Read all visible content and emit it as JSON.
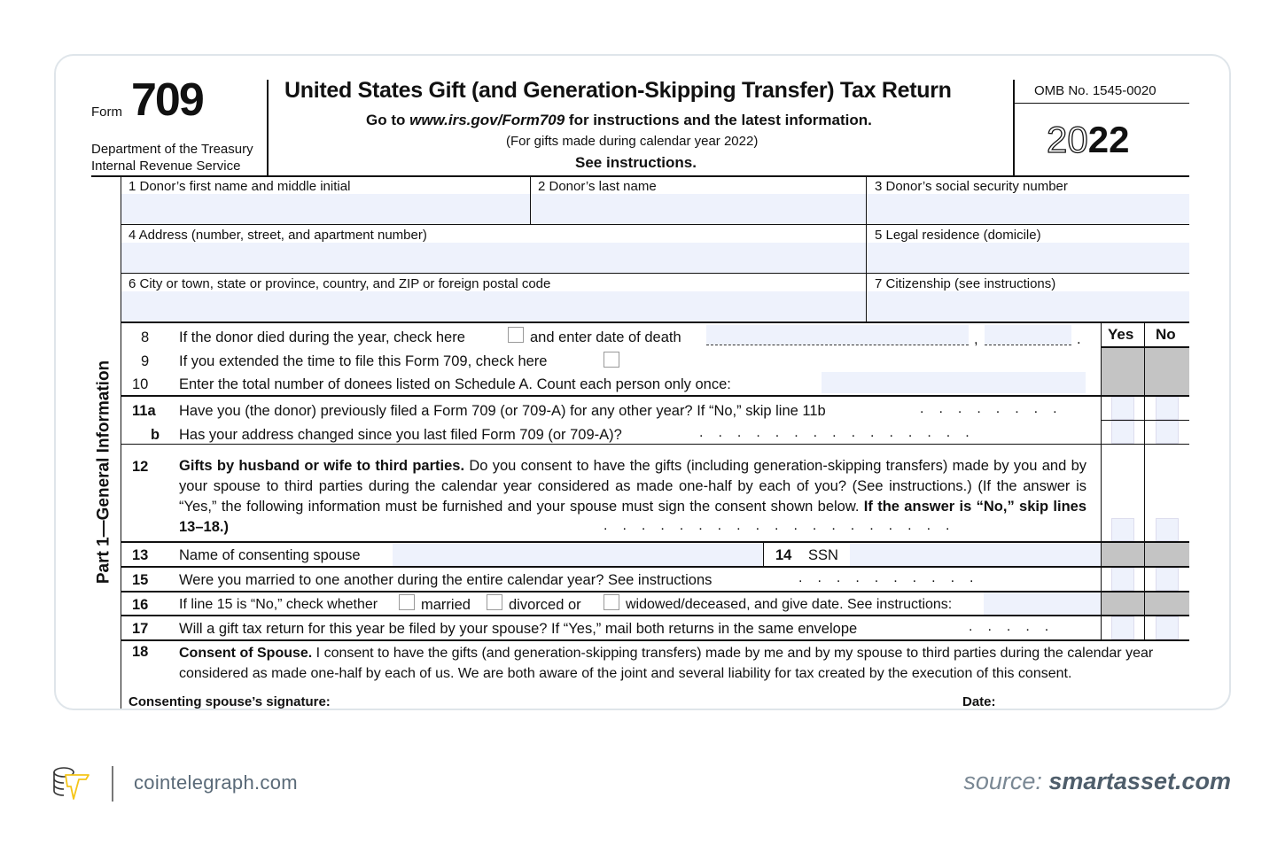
{
  "header": {
    "form_prefix": "Form",
    "form_number": "709",
    "dept_line1": "Department of the Treasury",
    "dept_line2": "Internal Revenue Service",
    "title": "United States Gift (and Generation-Skipping Transfer) Tax Return",
    "goto_pre": "Go to ",
    "goto_url": "www.irs.gov/Form709",
    "goto_post": " for instructions and the latest information.",
    "subtitle": "(For gifts made during calendar year 2022)",
    "see_instructions": "See instructions.",
    "omb": "OMB No. 1545-0020",
    "year_outline": "20",
    "year_bold": "22"
  },
  "part_label": "Part 1—General Information",
  "fields": {
    "f1": "1  Donor’s first name and middle initial",
    "f2": "2  Donor’s last name",
    "f3": "3 Donor’s social security number",
    "f4": "4  Address (number, street, and apartment number)",
    "f5": "5  Legal residence (domicile)",
    "f6": "6  City or town, state or province, country, and ZIP or foreign postal code",
    "f7": "7  Citizenship (see instructions)"
  },
  "yes_label": "Yes",
  "no_label": "No",
  "lines": {
    "l8_num": "8",
    "l8_a": "If the donor died during the year, check here",
    "l8_b": "and enter date of death",
    "l8_comma": ",",
    "l8_period": ".",
    "l9_num": "9",
    "l9": "If you extended the time to file this Form 709, check here",
    "l10_num": "10",
    "l10": "Enter the total number of donees listed on Schedule A. Count each person only once:",
    "l11a_num": "11a",
    "l11a": "Have you (the donor) previously filed a Form 709 (or 709-A) for any other year? If “No,” skip line 11b",
    "l11b_num": "b",
    "l11b": "Has your address changed since you last filed Form 709 (or 709-A)?",
    "l12_num": "12",
    "l12_bold": "Gifts by husband or wife to third parties.",
    "l12_text": " Do you consent to have the gifts (including generation-skipping transfers) made by you and by your spouse to third parties during the calendar year considered as made one-half by each of you? (See instructions.) (If the answer is “Yes,” the following information must be furnished and your spouse must sign the consent shown below. ",
    "l12_bold2": "If the answer is “No,” skip lines 13–18.)",
    "l13_num": "13",
    "l13": "Name of consenting spouse",
    "l14_num": "14",
    "l14": "SSN",
    "l15_num": "15",
    "l15": "Were you married to one another during the entire calendar year? See instructions",
    "l16_num": "16",
    "l16_a": "If line 15 is “No,” check whether",
    "l16_married": "married",
    "l16_divorced": "divorced or",
    "l16_widowed": "widowed/deceased, and give date. See instructions:",
    "l17_num": "17",
    "l17": "Will a gift tax return for this year be filed by your spouse? If “Yes,” mail both returns in the same envelope",
    "l18_num": "18",
    "l18_bold": "Consent of Spouse.",
    "l18_text": " I consent to have the gifts (and generation-skipping transfers) made by me and by my spouse to third parties during the calendar year considered as made one-half by each of us. We are both aware of the joint and several liability for tax created by the execution of this consent.",
    "signature": "Consenting spouse’s signature:",
    "date": "Date:"
  },
  "footer": {
    "brand": "cointelegraph.com",
    "source_label": "source:",
    "source_site": "smartasset.com"
  },
  "colors": {
    "field_fill": "#eef2fc",
    "shade": "#c4c4c4",
    "logo_yellow": "#f5c518",
    "footer_text": "#5a6a78"
  }
}
